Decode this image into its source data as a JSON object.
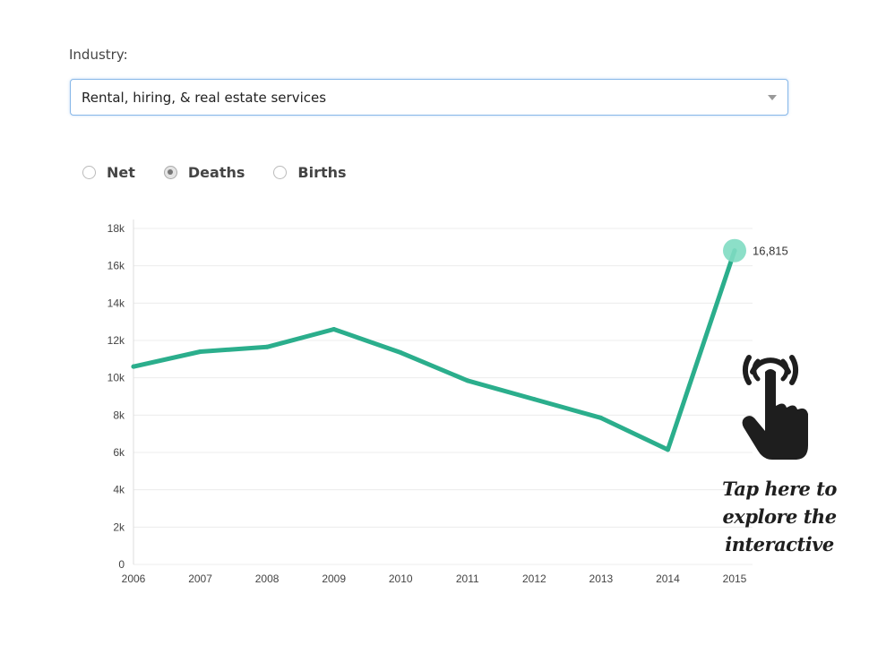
{
  "controls": {
    "industry_label": "Industry:",
    "industry_selected": "Rental, hiring, & real estate services",
    "radio_options": [
      {
        "label": "Net",
        "checked": false
      },
      {
        "label": "Deaths",
        "checked": true
      },
      {
        "label": "Births",
        "checked": false
      }
    ]
  },
  "hint": {
    "text_lines": [
      "Tap here to",
      "explore the",
      "interactive"
    ],
    "icon": "tap-hand-icon"
  },
  "colors": {
    "line": "#2bae8c",
    "marker": "#7fdcc2",
    "grid": "#ececec",
    "axis_text": "#444444"
  },
  "chart_data": {
    "type": "line",
    "categories": [
      "2006",
      "2007",
      "2008",
      "2009",
      "2010",
      "2011",
      "2012",
      "2013",
      "2014",
      "2015"
    ],
    "series": [
      {
        "values": [
          10600,
          11400,
          11650,
          12600,
          11350,
          9850,
          8850,
          7850,
          6150,
          16815
        ]
      }
    ],
    "ylim": [
      0,
      18000
    ],
    "yticks": [
      0,
      2000,
      4000,
      6000,
      8000,
      10000,
      12000,
      14000,
      16000,
      18000
    ],
    "ytick_labels": [
      "0",
      "2k",
      "4k",
      "6k",
      "8k",
      "10k",
      "12k",
      "14k",
      "16k",
      "18k"
    ],
    "highlight": {
      "index": 9,
      "label": "16,815"
    },
    "grid": true,
    "legend": "none"
  }
}
